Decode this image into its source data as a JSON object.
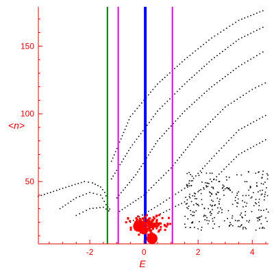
{
  "chart_data": {
    "type": "scatter",
    "xlabel": "E",
    "ylabel": "<n>",
    "xlim": [
      -3.9,
      4.6
    ],
    "ylim": [
      4,
      180
    ],
    "grid": false,
    "colors": {
      "axis": "#e00000",
      "bands": "#000000",
      "states": "#ff0000",
      "green": "#007700",
      "magenta": "#e000e0",
      "blue": "#0000ff"
    },
    "x_ticks": [
      -2,
      0,
      2,
      4
    ],
    "y_ticks": [
      50,
      100,
      150
    ],
    "vertical_lines": [
      {
        "x": -1.35,
        "color": "green",
        "width": 2
      },
      {
        "x": -0.95,
        "color": "magenta",
        "width": 2
      },
      {
        "x": 0.05,
        "color": "blue",
        "width": 4
      },
      {
        "x": 1.05,
        "color": "magenta",
        "width": 2
      }
    ],
    "bands": [
      {
        "points": [
          [
            -3.9,
            39
          ],
          [
            -3.0,
            45
          ],
          [
            -2.2,
            50
          ],
          [
            -1.9,
            49
          ],
          [
            -1.6,
            46
          ],
          [
            -1.45,
            42
          ],
          [
            -1.35,
            37
          ]
        ]
      },
      {
        "points": [
          [
            -3.1,
            30
          ],
          [
            -2.5,
            38
          ],
          [
            -2.0,
            42
          ],
          [
            -1.6,
            40
          ],
          [
            -1.4,
            33
          ],
          [
            -1.2,
            28
          ]
        ]
      },
      {
        "points": [
          [
            -2.5,
            25
          ],
          [
            -2.0,
            30
          ],
          [
            -1.5,
            31
          ],
          [
            -1.2,
            27
          ]
        ]
      },
      {
        "points": [
          [
            -1.2,
            65
          ],
          [
            -0.5,
            98
          ],
          [
            0.5,
            122
          ],
          [
            1.5,
            140
          ],
          [
            2.5,
            156
          ],
          [
            3.5,
            169
          ],
          [
            4.5,
            177
          ]
        ]
      },
      {
        "points": [
          [
            -1.2,
            52
          ],
          [
            -0.5,
            75
          ],
          [
            0.5,
            102
          ],
          [
            1.5,
            122
          ],
          [
            2.5,
            140
          ],
          [
            3.5,
            155
          ],
          [
            4.5,
            165
          ]
        ]
      },
      {
        "points": [
          [
            -1.0,
            38
          ],
          [
            -0.3,
            55
          ],
          [
            0.5,
            80
          ],
          [
            1.5,
            102
          ],
          [
            2.5,
            120
          ],
          [
            3.5,
            135
          ],
          [
            4.5,
            147
          ]
        ]
      },
      {
        "points": [
          [
            -0.9,
            28
          ],
          [
            0.0,
            40
          ],
          [
            1.0,
            60
          ],
          [
            2.0,
            85
          ],
          [
            3.0,
            105
          ],
          [
            4.0,
            118
          ],
          [
            4.6,
            124
          ]
        ]
      },
      {
        "points": [
          [
            -0.5,
            20
          ],
          [
            0.5,
            32
          ],
          [
            1.5,
            45
          ],
          [
            2.5,
            67
          ],
          [
            3.5,
            88
          ],
          [
            4.6,
            100
          ]
        ]
      },
      {
        "points": [
          [
            0.5,
            25
          ],
          [
            1.5,
            35
          ],
          [
            2.5,
            50
          ],
          [
            3.5,
            70
          ],
          [
            4.6,
            82
          ]
        ]
      }
    ],
    "scatter_cloud": {
      "xrange": [
        1.5,
        4.6
      ],
      "yrange": [
        14,
        58
      ],
      "count": 260
    },
    "red_cluster": {
      "center": [
        0.1,
        18
      ],
      "spread": [
        1.0,
        9
      ],
      "count": 170
    },
    "red_big": [
      {
        "x": -0.2,
        "y": 17,
        "r": 8
      },
      {
        "x": 0.0,
        "y": 14,
        "r": 6
      },
      {
        "x": 0.3,
        "y": 8,
        "r": 8
      }
    ]
  }
}
